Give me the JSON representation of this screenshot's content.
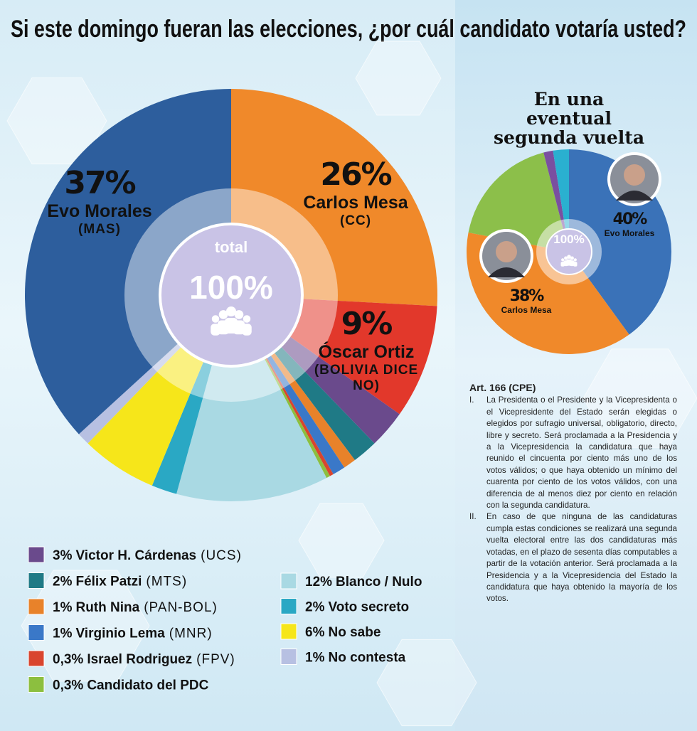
{
  "chart_data": [
    {
      "type": "pie",
      "title": "Si este domingo fueran las elecciones, ¿por cuál candidato votaría usted?",
      "center_title": "total",
      "center_value": "100%",
      "categories": [
        "Carlos Mesa",
        "Óscar Ortiz",
        "Victor H. Cárdenas",
        "Félix Patzi",
        "Ruth Nina",
        "Virginio Lema",
        "Israel Rodriguez",
        "Candidato del PDC",
        "Blanco / Nulo",
        "Voto secreto",
        "No sabe",
        "No contesta",
        "Evo Morales"
      ],
      "parties": [
        "(CC)",
        "(BOLIVIA DICE NO)",
        "(UCS)",
        "(MTS)",
        "(PAN-BOL)",
        "(MNR)",
        "(FPV)",
        null,
        null,
        null,
        null,
        null,
        "(MAS)"
      ],
      "values": [
        26,
        9,
        3,
        2,
        1,
        1,
        0.3,
        0.3,
        12,
        2,
        6,
        1,
        37
      ],
      "value_labels": [
        "26%",
        "9%",
        "3%",
        "2%",
        "1%",
        "1%",
        "0,3%",
        "0,3%",
        "12%",
        "2%",
        "6%",
        "1%",
        "37%"
      ],
      "colors": [
        "#f0892a",
        "#e2382b",
        "#6a4a8c",
        "#1f7a86",
        "#e8822a",
        "#3a78c8",
        "#d9452e",
        "#8cbf3f",
        "#a9d9e3",
        "#2aa8c4",
        "#f6e61a",
        "#b7c0e2",
        "#2d5e9d"
      ]
    },
    {
      "type": "pie",
      "title": "En una eventual segunda vuelta",
      "center_value": "100%",
      "categories": [
        "Evo Morales",
        "Carlos Mesa",
        null,
        null,
        null
      ],
      "values": [
        40,
        38,
        18,
        1.5,
        2.5
      ],
      "value_labels": [
        "40%",
        "38%",
        null,
        null,
        null
      ],
      "colors": [
        "#3a72b8",
        "#f0892a",
        "#8cbf4a",
        "#7a4fa0",
        "#2ab0d0"
      ]
    }
  ],
  "article": {
    "title": "Art. 166 (CPE)",
    "items": [
      {
        "marker": "I.",
        "text": "La Presidenta o el Presidente y la Vicepresidenta o el Vicepresidente del Estado serán elegidas o elegidos por sufragio universal, obligatorio, directo, libre y secreto. Será proclamada a la Presidencia y a la Vicepresidencia la candidatura que haya reunido el cincuenta por ciento más uno de los votos válidos; o que haya obtenido un mínimo del cuarenta por ciento de los votos válidos, con una diferencia de al menos diez por ciento en relación con la segunda candidatura."
      },
      {
        "marker": "II.",
        "text": "En caso de que ninguna de las candidaturas cumpla estas condiciones se realizará una segunda vuelta electoral entre las dos candidaturas más votadas, en el plazo de sesenta días computables a partir de la votación anterior. Será proclamada a la Presidencia y a la Vicepresidencia del Estado la candidatura que haya obtenido la mayoría de los votos."
      }
    ]
  }
}
